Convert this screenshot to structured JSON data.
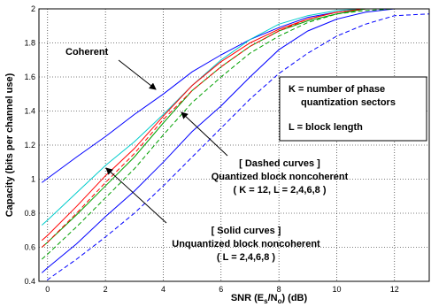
{
  "chart_data": {
    "type": "line",
    "xlabel": "SNR (E",
    "xlabel_sub": "s",
    "xlabel_mid": "/N",
    "xlabel_sub2": "o",
    "xlabel_tail": ")  (dB)",
    "ylabel": "Capacity (bits per channel use)",
    "xlim": [
      -0.3,
      13.2
    ],
    "ylim": [
      0.4,
      2.0
    ],
    "grid": true,
    "xticks": [
      0,
      2,
      4,
      6,
      8,
      10,
      12
    ],
    "yticks": [
      0.4,
      0.6,
      0.8,
      1.0,
      1.2,
      1.4,
      1.6,
      1.8,
      2.0
    ],
    "xtick_labels": [
      "0",
      "2",
      "4",
      "6",
      "8",
      "10",
      "12"
    ],
    "ytick_labels": [
      "0.4",
      "0.6",
      "0.8",
      "1",
      "1.2",
      "1.4",
      "1.6",
      "1.8",
      "2"
    ],
    "series": [
      {
        "color": "#0000ff",
        "dash": false,
        "x": [
          -0.2,
          1,
          2,
          3,
          4,
          5,
          6,
          7,
          8,
          9,
          10,
          11,
          12,
          13.2
        ],
        "y": [
          0.98,
          1.13,
          1.25,
          1.38,
          1.5,
          1.63,
          1.73,
          1.82,
          1.89,
          1.95,
          1.98,
          2.0,
          2.0,
          2.0
        ]
      },
      {
        "color": "#00cccc",
        "dash": false,
        "x": [
          -0.2,
          0,
          1,
          2,
          3,
          4,
          5,
          6,
          7,
          8,
          9,
          10,
          11,
          12,
          13.2
        ],
        "y": [
          0.73,
          0.76,
          0.92,
          1.08,
          1.22,
          1.38,
          1.55,
          1.7,
          1.82,
          1.91,
          1.96,
          1.99,
          2.0,
          2.0,
          2.0
        ]
      },
      {
        "color": "#ff0000",
        "dash": false,
        "x": [
          -0.2,
          0,
          1,
          2,
          3,
          4,
          5,
          6,
          7,
          8,
          9,
          10,
          11,
          12,
          13.2
        ],
        "y": [
          0.64,
          0.67,
          0.84,
          1.02,
          1.18,
          1.37,
          1.55,
          1.69,
          1.8,
          1.88,
          1.94,
          1.98,
          2.0,
          2.0,
          2.0
        ]
      },
      {
        "color": "#00a000",
        "dash": false,
        "x": [
          -0.2,
          0,
          1,
          2,
          3,
          4,
          5,
          6,
          7,
          8,
          9,
          10,
          11,
          12,
          13.2
        ],
        "y": [
          0.6,
          0.63,
          0.79,
          0.96,
          1.13,
          1.33,
          1.52,
          1.66,
          1.78,
          1.87,
          1.93,
          1.97,
          2.0,
          2.0,
          2.0
        ]
      },
      {
        "color": "#0000ff",
        "dash": false,
        "x": [
          -0.2,
          0,
          1,
          2,
          3,
          4,
          5,
          6,
          7,
          8,
          9,
          10,
          11,
          12,
          13.2
        ],
        "y": [
          0.45,
          0.48,
          0.62,
          0.78,
          0.93,
          1.1,
          1.28,
          1.43,
          1.6,
          1.76,
          1.87,
          1.94,
          1.98,
          2.0,
          2.0
        ]
      },
      {
        "color": "#ff0000",
        "dash": true,
        "x": [
          -0.2,
          0,
          1,
          2,
          3,
          4,
          5,
          6,
          7,
          8,
          9,
          10,
          11,
          12,
          13.2
        ],
        "y": [
          0.6,
          0.63,
          0.8,
          0.98,
          1.15,
          1.35,
          1.52,
          1.66,
          1.78,
          1.87,
          1.94,
          1.98,
          2.0,
          2.0,
          2.0
        ]
      },
      {
        "color": "#00a000",
        "dash": true,
        "x": [
          -0.2,
          0,
          1,
          2,
          3,
          4,
          5,
          6,
          7,
          8,
          9,
          10,
          11,
          12,
          13.2
        ],
        "y": [
          0.53,
          0.56,
          0.72,
          0.89,
          1.06,
          1.26,
          1.45,
          1.6,
          1.74,
          1.84,
          1.92,
          1.97,
          1.99,
          2.0,
          2.0
        ]
      },
      {
        "color": "#0000ff",
        "dash": true,
        "x": [
          -0.2,
          0,
          1,
          2,
          3,
          4,
          5,
          6,
          7,
          8,
          9,
          10,
          11,
          12,
          13.2
        ],
        "y": [
          0.38,
          0.41,
          0.53,
          0.66,
          0.8,
          0.96,
          1.13,
          1.3,
          1.47,
          1.62,
          1.74,
          1.84,
          1.91,
          1.96,
          1.97
        ]
      }
    ]
  },
  "annotations": {
    "coherent": "Coherent",
    "box_line1": "K = number of phase",
    "box_line2": "quantization sectors",
    "box_line3": "L =  block length",
    "dashed_line1": "[ Dashed curves ]",
    "dashed_line2": "Quantized block noncoherent",
    "dashed_line3": "( K = 12, L = 2,4,6,8 )",
    "solid_line1": "[ Solid curves ]",
    "solid_line2": "Unquantized block noncoherent",
    "solid_line3": "( L = 2,4,6,8 )"
  }
}
